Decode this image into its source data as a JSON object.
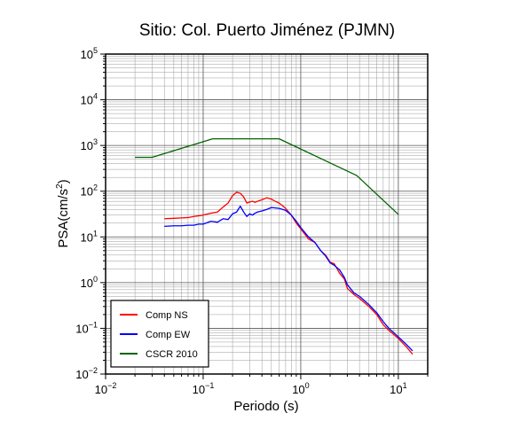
{
  "chart_data": {
    "type": "line",
    "title": "Sitio: Col. Puerto Jiménez (PJMN)",
    "xlabel": "Periodo (s)",
    "ylabel_base": "PSA(cm/s",
    "ylabel_sup": "2",
    "ylabel_close": ")",
    "xscale": "log",
    "yscale": "log",
    "xlim": [
      0.01,
      20
    ],
    "ylim": [
      0.01,
      100000
    ],
    "grid": true,
    "legend_position": "bottom-left",
    "x_ticks": [
      {
        "value": 0.01,
        "base": "10",
        "exp": "−2"
      },
      {
        "value": 0.1,
        "base": "10",
        "exp": "−1"
      },
      {
        "value": 1,
        "base": "10",
        "exp": "0"
      },
      {
        "value": 10,
        "base": "10",
        "exp": "1"
      }
    ],
    "y_ticks": [
      {
        "value": 0.01,
        "base": "10",
        "exp": "−2"
      },
      {
        "value": 0.1,
        "base": "10",
        "exp": "−1"
      },
      {
        "value": 1,
        "base": "10",
        "exp": "0"
      },
      {
        "value": 10,
        "base": "10",
        "exp": "1"
      },
      {
        "value": 100,
        "base": "10",
        "exp": "2"
      },
      {
        "value": 1000,
        "base": "10",
        "exp": "3"
      },
      {
        "value": 10000,
        "base": "10",
        "exp": "4"
      },
      {
        "value": 100000,
        "base": "10",
        "exp": "5"
      }
    ],
    "series": [
      {
        "name": "Comp NS",
        "color": "#ff0000",
        "x": [
          0.04,
          0.05,
          0.06,
          0.07,
          0.08,
          0.09,
          0.1,
          0.12,
          0.14,
          0.16,
          0.18,
          0.2,
          0.22,
          0.24,
          0.26,
          0.28,
          0.3,
          0.32,
          0.34,
          0.36,
          0.4,
          0.45,
          0.5,
          0.55,
          0.6,
          0.65,
          0.7,
          0.8,
          0.9,
          1.0,
          1.2,
          1.4,
          1.6,
          1.8,
          2.0,
          2.2,
          2.5,
          2.8,
          3.0,
          3.5,
          4.0,
          5.0,
          6.0,
          7.0,
          8.0,
          10.0,
          12.0,
          14.0
        ],
        "y": [
          25,
          25.5,
          26,
          26.5,
          28,
          29,
          30,
          33,
          35,
          45,
          55,
          80,
          95,
          90,
          75,
          55,
          58,
          60,
          57,
          60,
          65,
          72,
          67,
          60,
          55,
          48,
          42,
          30,
          20,
          15,
          9,
          7.5,
          5,
          4,
          2.8,
          2.6,
          1.6,
          1.2,
          0.75,
          0.55,
          0.45,
          0.3,
          0.2,
          0.12,
          0.09,
          0.06,
          0.04,
          0.027
        ]
      },
      {
        "name": "Comp EW",
        "color": "#0000ff",
        "x": [
          0.04,
          0.05,
          0.06,
          0.07,
          0.08,
          0.09,
          0.1,
          0.12,
          0.14,
          0.16,
          0.18,
          0.2,
          0.22,
          0.24,
          0.26,
          0.28,
          0.3,
          0.32,
          0.34,
          0.36,
          0.4,
          0.45,
          0.5,
          0.55,
          0.6,
          0.65,
          0.7,
          0.8,
          0.9,
          1.0,
          1.2,
          1.4,
          1.6,
          1.8,
          2.0,
          2.2,
          2.5,
          2.8,
          3.0,
          3.5,
          4.0,
          5.0,
          6.0,
          7.0,
          8.0,
          10.0,
          12.0,
          14.0
        ],
        "y": [
          17,
          17.5,
          17.5,
          18,
          18,
          19,
          19,
          22,
          21,
          25,
          24,
          32,
          35,
          47,
          35,
          28,
          32,
          30,
          33,
          35,
          37,
          40,
          44,
          43,
          42,
          40,
          38,
          30,
          22,
          16,
          10,
          7.5,
          5,
          3.8,
          2.7,
          2.4,
          1.9,
          1.3,
          0.9,
          0.6,
          0.5,
          0.33,
          0.22,
          0.14,
          0.1,
          0.065,
          0.045,
          0.032
        ]
      },
      {
        "name": "CSCR 2010",
        "color": "#006400",
        "x": [
          0.02,
          0.03,
          0.125,
          0.6,
          3.75,
          10
        ],
        "y": [
          550,
          550,
          1400,
          1400,
          220,
          31
        ]
      }
    ]
  }
}
